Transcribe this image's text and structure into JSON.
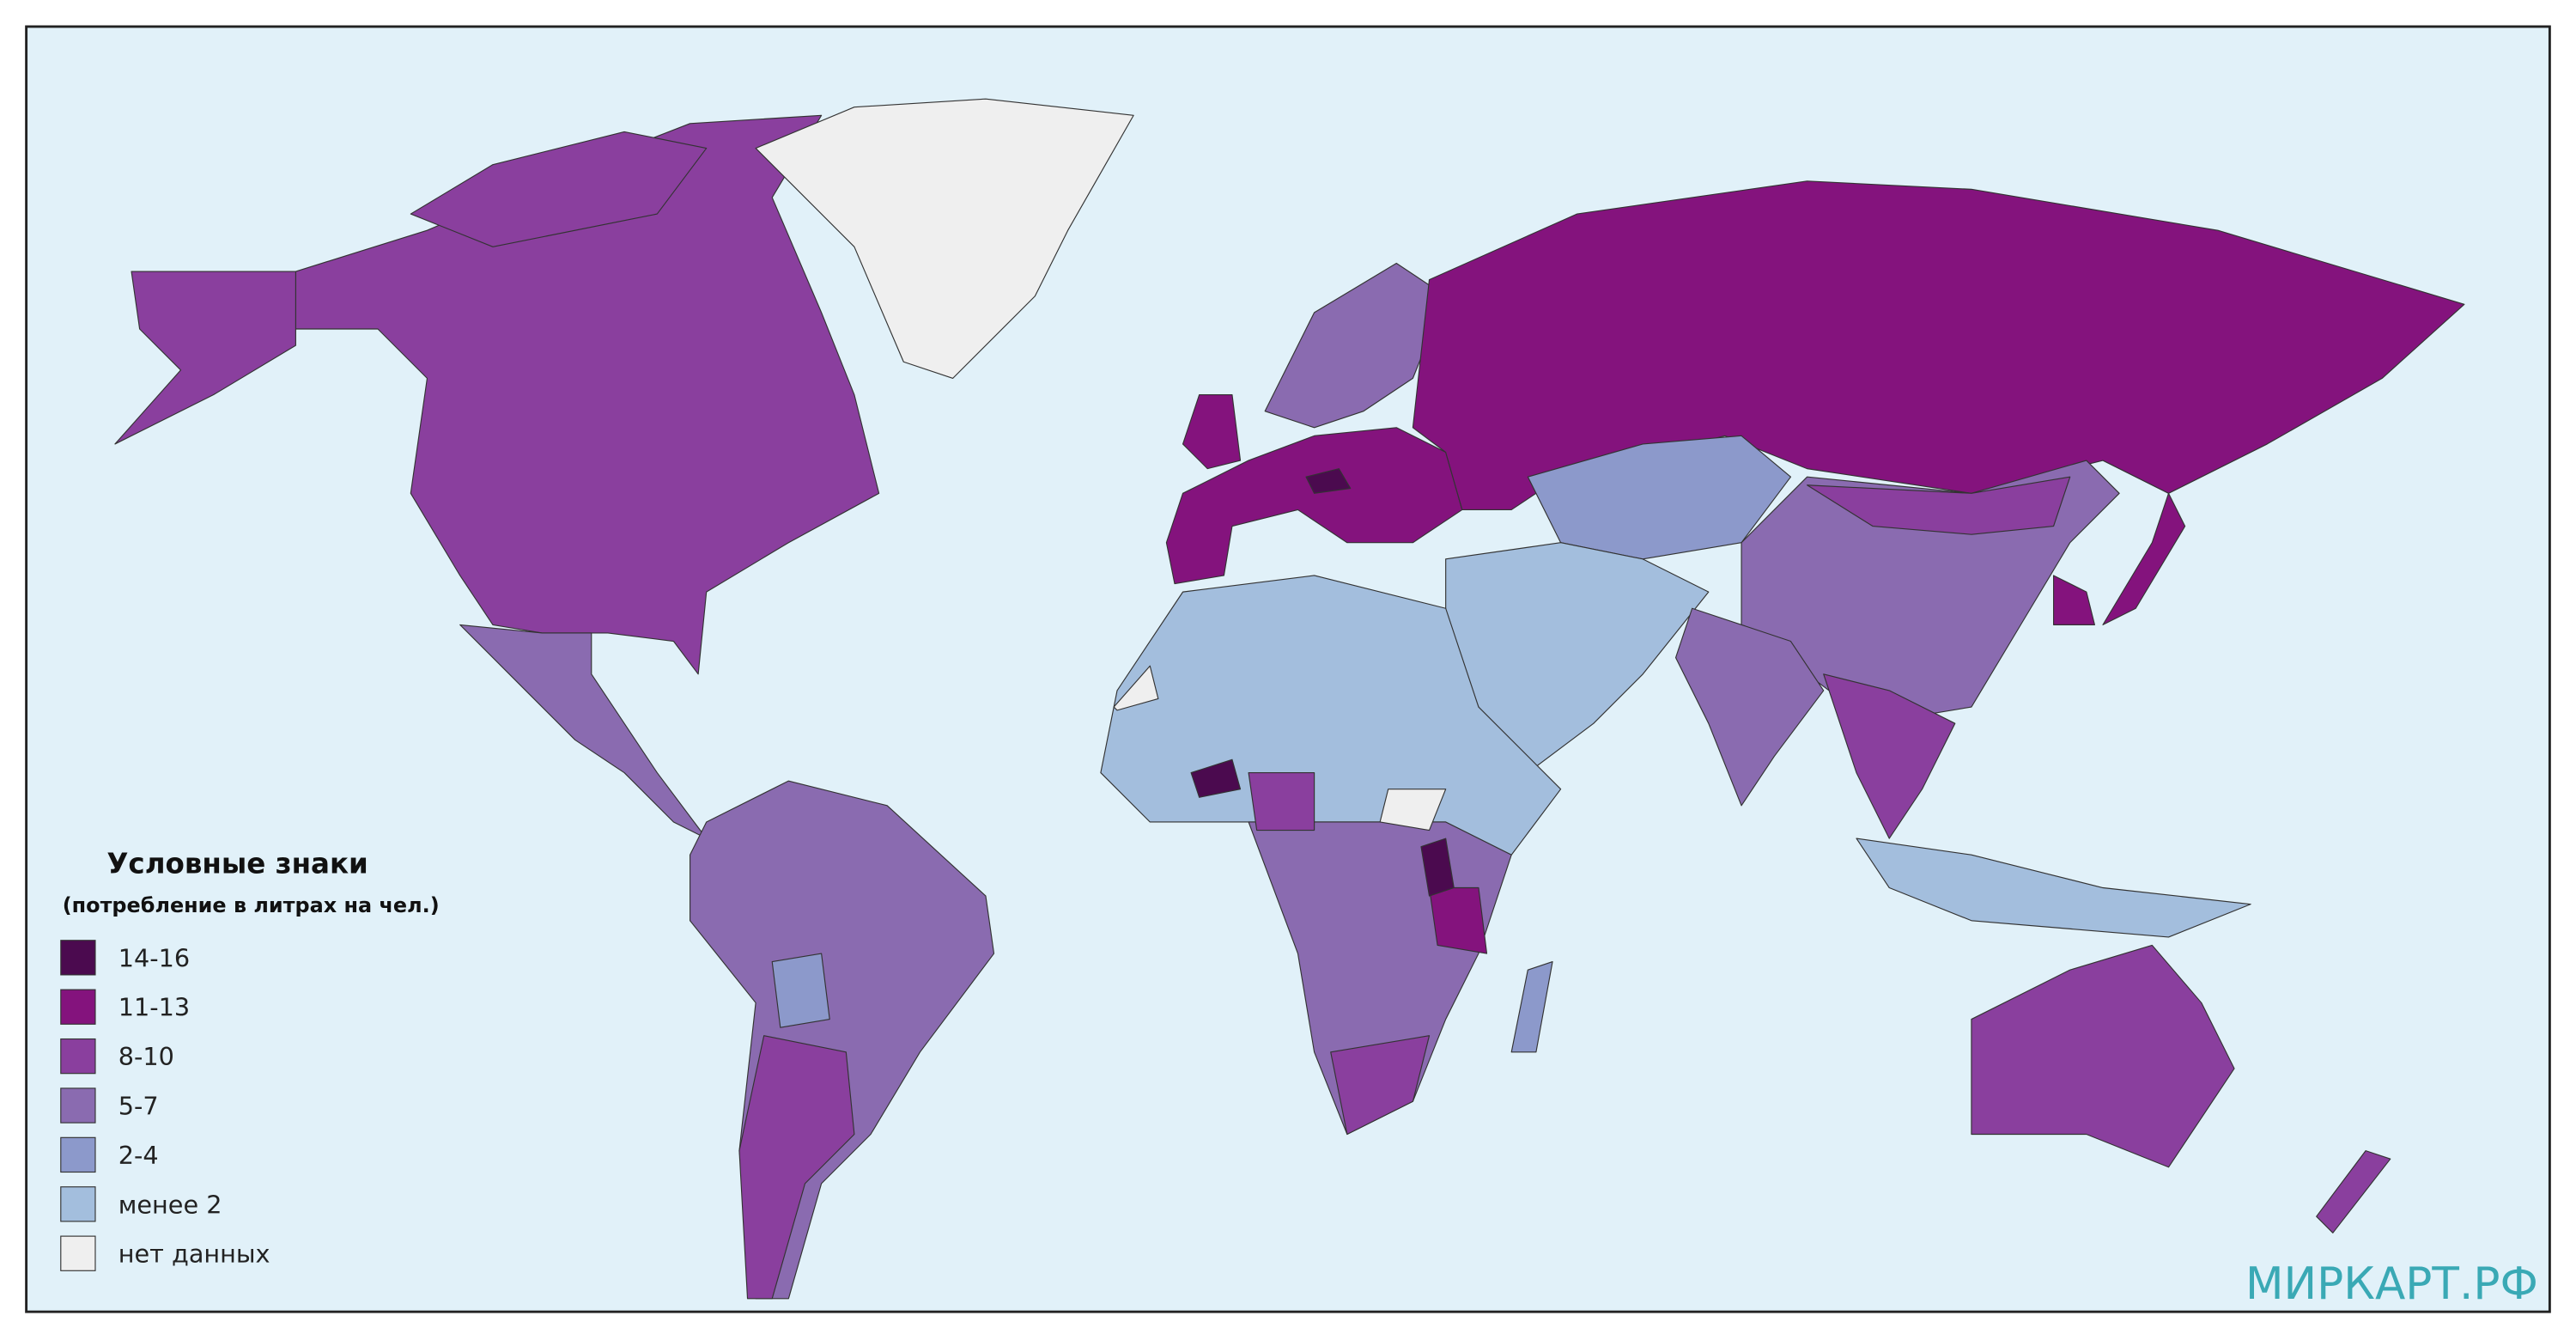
{
  "legend": {
    "title": "Условные знаки",
    "subtitle": "(потребление в литрах на чел.)",
    "items": [
      {
        "label": "14-16",
        "color": "#4b0a4f"
      },
      {
        "label": "11-13",
        "color": "#84137d"
      },
      {
        "label": "8-10",
        "color": "#8a3f9e"
      },
      {
        "label": "5-7",
        "color": "#8a6bb0"
      },
      {
        "label": "2-4",
        "color": "#8c99cb"
      },
      {
        "label": "менее 2",
        "color": "#a3bedd"
      },
      {
        "label": "нет данных",
        "color": "#efefef"
      }
    ]
  },
  "watermark": "МИРКАРТ.РФ"
}
